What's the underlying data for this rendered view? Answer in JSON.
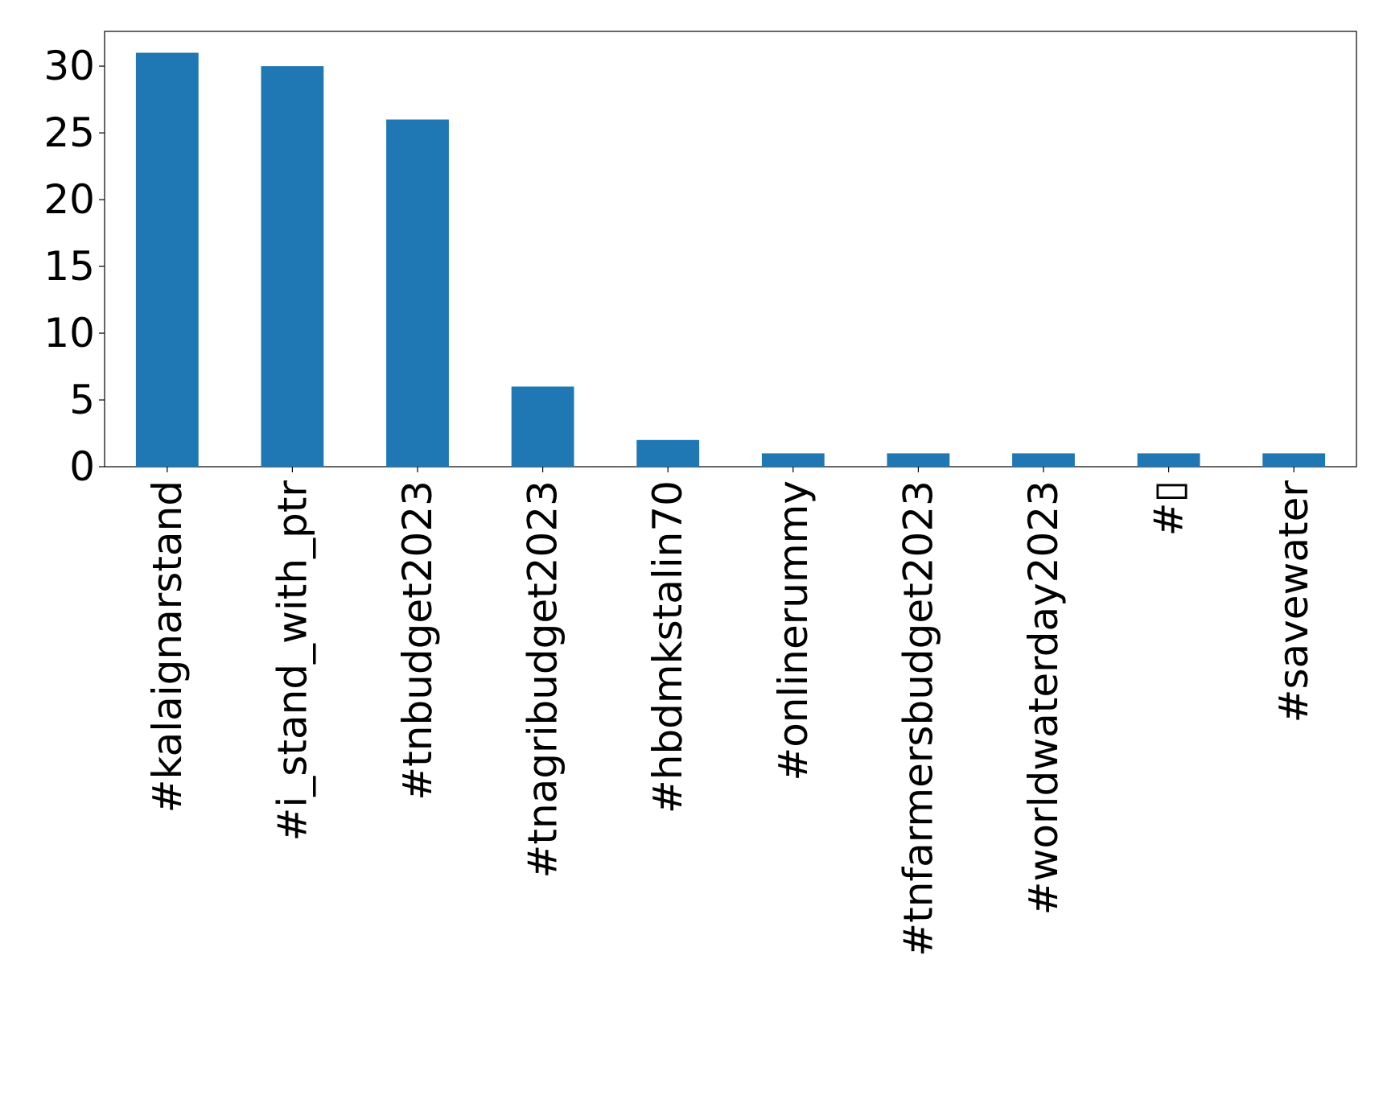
{
  "chart_data": {
    "type": "bar",
    "title": "",
    "xlabel": "",
    "ylabel": "",
    "categories": [
      "#kalaignarstand",
      "#i_stand_with_ptr",
      "#tnbudget2023",
      "#tnagribudget2023",
      "#hbdmkstalin70",
      "#onlinerummy",
      "#tnfarmersbudget2023",
      "#worldwaterday2023",
      "#▯",
      "#savewater"
    ],
    "values": [
      31,
      30,
      26,
      6,
      2,
      1,
      1,
      1,
      1,
      1
    ],
    "ylim": [
      0,
      32.6
    ],
    "yticks": [
      0,
      5,
      10,
      15,
      20,
      25,
      30
    ],
    "bar_color": "#1f77b4",
    "grid": false,
    "legend": "none"
  }
}
